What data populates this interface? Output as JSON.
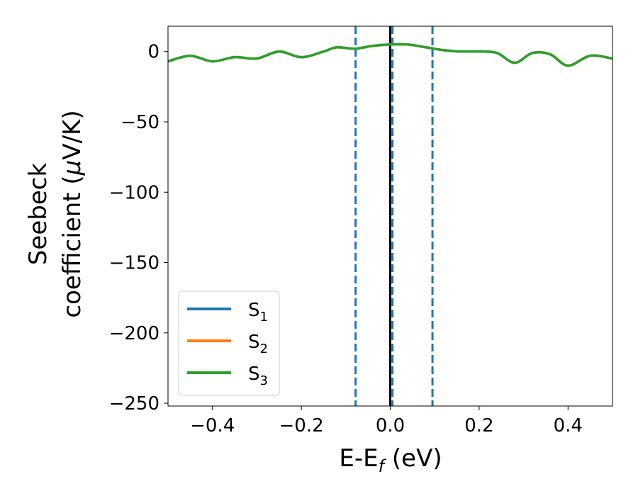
{
  "chart_data": {
    "type": "line",
    "xlabel": "E-E",
    "xlabel_sub": "f",
    "xlabel_unit": " (eV)",
    "ylabel_line1": "Seebeck",
    "ylabel_line2": "coefficient  (",
    "ylabel_mu": "μ",
    "ylabel_unit": "V/K)",
    "xlim": [
      -0.5,
      0.5
    ],
    "ylim": [
      -252,
      18
    ],
    "x_ticks": [
      -0.4,
      -0.2,
      0.0,
      0.2,
      0.4
    ],
    "x_tick_labels": [
      "−0.4",
      "−0.2",
      "0.0",
      "0.2",
      "0.4"
    ],
    "y_ticks": [
      0,
      -50,
      -100,
      -150,
      -200,
      -250
    ],
    "y_tick_labels": [
      "0",
      "−50",
      "−100",
      "−150",
      "−200",
      "−250"
    ],
    "grid": false,
    "legend_position": "bottom-left",
    "colors": {
      "S1": "#1f77b4",
      "S2": "#ff7f0e",
      "S3": "#2ca02c",
      "fermi_line": "#000000",
      "dashed_lines": "#1f77b4"
    },
    "series": [
      {
        "name": "S",
        "sub": "1",
        "color": "#1f77b4",
        "x": [
          -0.5,
          -0.45,
          -0.4,
          -0.35,
          -0.3,
          -0.25,
          -0.2,
          -0.15,
          -0.12,
          -0.08,
          -0.04,
          0.0,
          0.04,
          0.08,
          0.12,
          0.16,
          0.2,
          0.24,
          0.28,
          0.32,
          0.36,
          0.4,
          0.45,
          0.5
        ],
        "y": [
          -7,
          -3,
          -7,
          -4,
          -5,
          0,
          -4,
          0,
          3,
          2,
          4,
          5,
          5,
          3,
          1,
          0,
          0,
          -1,
          -8,
          -1,
          -2,
          -10,
          -3,
          -5
        ]
      },
      {
        "name": "S",
        "sub": "2",
        "color": "#ff7f0e",
        "x": [
          -0.5,
          -0.45,
          -0.4,
          -0.35,
          -0.3,
          -0.25,
          -0.2,
          -0.15,
          -0.12,
          -0.08,
          -0.04,
          0.0,
          0.04,
          0.08,
          0.12,
          0.16,
          0.2,
          0.24,
          0.28,
          0.32,
          0.36,
          0.4,
          0.45,
          0.5
        ],
        "y": [
          -7,
          -3,
          -7,
          -4,
          -5,
          0,
          -4,
          0,
          3,
          2,
          4,
          5,
          5,
          3,
          1,
          0,
          0,
          -1,
          -8,
          -1,
          -2,
          -10,
          -3,
          -5
        ]
      },
      {
        "name": "S",
        "sub": "3",
        "color": "#2ca02c",
        "x": [
          -0.5,
          -0.45,
          -0.4,
          -0.35,
          -0.3,
          -0.25,
          -0.2,
          -0.15,
          -0.12,
          -0.08,
          -0.04,
          0.0,
          0.04,
          0.08,
          0.12,
          0.16,
          0.2,
          0.24,
          0.28,
          0.32,
          0.36,
          0.4,
          0.45,
          0.5
        ],
        "y": [
          -7,
          -3,
          -7,
          -4,
          -5,
          0,
          -4,
          0,
          3,
          2,
          4,
          5,
          5,
          3,
          1,
          0,
          0,
          -1,
          -8,
          -1,
          -2,
          -10,
          -3,
          -5
        ]
      }
    ],
    "vertical_lines": [
      {
        "x": -0.078,
        "style": "dashed",
        "color": "#1f77b4"
      },
      {
        "x": 0.0,
        "style": "solid",
        "color": "#000000"
      },
      {
        "x": 0.005,
        "style": "dashed",
        "color": "#1f77b4"
      },
      {
        "x": 0.095,
        "style": "dashed",
        "color": "#1f77b4"
      }
    ]
  }
}
